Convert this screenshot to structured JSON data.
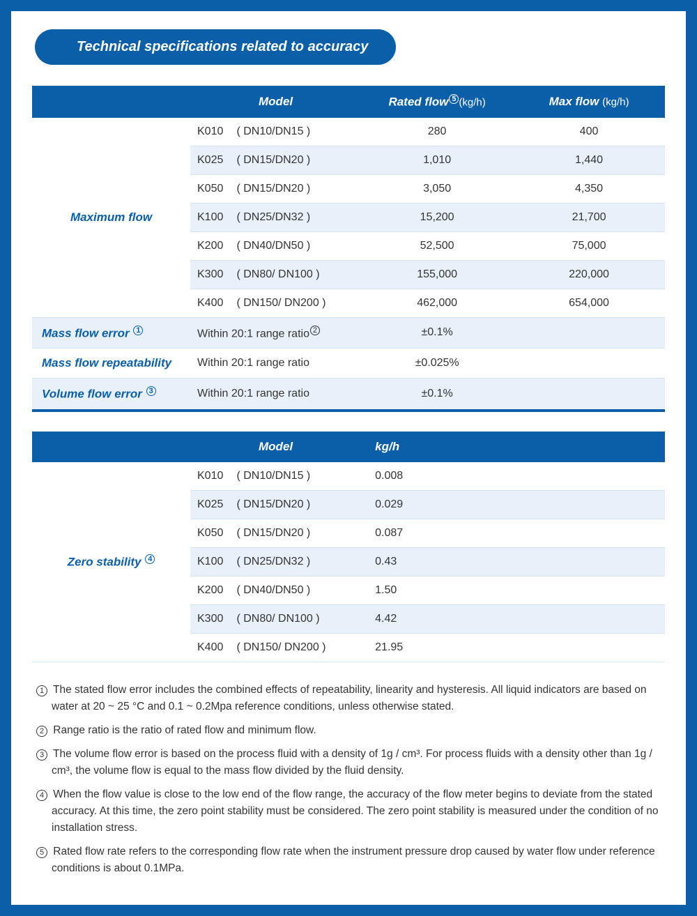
{
  "colors": {
    "primary": "#0a5fa8",
    "row_alt": "#e8f1fa",
    "text": "#333333",
    "page_bg": "#ffffff",
    "outer_bg": "#0a5fa8"
  },
  "title": "Technical specifications related to accuracy",
  "table1": {
    "headers": {
      "blank": "",
      "model": "Model",
      "rated": "Rated flow",
      "rated_sup": "5",
      "rated_unit": "(kg/h)",
      "max": "Max flow",
      "max_unit": "(kg/h)"
    },
    "maxflow_label": "Maximum flow",
    "rows": [
      {
        "model_code": "K010",
        "model_dn": "( DN10/DN15 )",
        "rated": "280",
        "max": "400"
      },
      {
        "model_code": "K025",
        "model_dn": "( DN15/DN20 )",
        "rated": "1,010",
        "max": "1,440"
      },
      {
        "model_code": "K050",
        "model_dn": "( DN15/DN20 )",
        "rated": "3,050",
        "max": "4,350"
      },
      {
        "model_code": "K100",
        "model_dn": "( DN25/DN32 )",
        "rated": "15,200",
        "max": "21,700"
      },
      {
        "model_code": "K200",
        "model_dn": "( DN40/DN50 )",
        "rated": "52,500",
        "max": "75,000"
      },
      {
        "model_code": "K300",
        "model_dn": "( DN80/ DN100 )",
        "rated": "155,000",
        "max": "220,000"
      },
      {
        "model_code": "K400",
        "model_dn": "( DN150/ DN200 )",
        "rated": "462,000",
        "max": "654,000"
      }
    ],
    "spec_rows": [
      {
        "label": "Mass flow error",
        "sup": "1",
        "cond": "Within 20:1 range ratio",
        "cond_sup": "2",
        "val": "±0.1%"
      },
      {
        "label": "Mass flow repeatability",
        "sup": "",
        "cond": "Within 20:1 range ratio",
        "cond_sup": "",
        "val": "±0.025%"
      },
      {
        "label": "Volume flow error",
        "sup": "3",
        "cond": "Within 20:1 range ratio",
        "cond_sup": "",
        "val": "±0.1%"
      }
    ]
  },
  "table2": {
    "headers": {
      "blank": "",
      "model": "Model",
      "val": "kg/h"
    },
    "label": "Zero stability",
    "label_sup": "4",
    "rows": [
      {
        "model_code": "K010",
        "model_dn": "( DN10/DN15 )",
        "val": "0.008"
      },
      {
        "model_code": "K025",
        "model_dn": "( DN15/DN20 )",
        "val": "0.029"
      },
      {
        "model_code": "K050",
        "model_dn": "( DN15/DN20 )",
        "val": "0.087"
      },
      {
        "model_code": "K100",
        "model_dn": "( DN25/DN32 )",
        "val": "0.43"
      },
      {
        "model_code": "K200",
        "model_dn": "( DN40/DN50 )",
        "val": "1.50"
      },
      {
        "model_code": "K300",
        "model_dn": "( DN80/ DN100 )",
        "val": "4.42"
      },
      {
        "model_code": "K400",
        "model_dn": "( DN150/ DN200 )",
        "val": "21.95"
      }
    ]
  },
  "footnotes": [
    {
      "n": "1",
      "text": "The stated flow error includes the combined effects of repeatability, linearity and hysteresis. All liquid indicators are based on water at 20 ~ 25 °C and 0.1 ~ 0.2Mpa reference conditions, unless otherwise stated."
    },
    {
      "n": "2",
      "text": "Range ratio is the ratio of rated flow and minimum flow."
    },
    {
      "n": "3",
      "text": "The volume flow error is based on the process fluid with a density of 1g / cm³. For process fluids with a density other than 1g / cm³, the volume flow is equal to the mass flow divided by the fluid density."
    },
    {
      "n": "4",
      "text": "When the flow value is close to the low end of the flow range, the accuracy of the flow meter begins to deviate from the stated accuracy. At this time, the zero point stability must be considered. The zero point stability is measured under the condition of no installation stress."
    },
    {
      "n": "5",
      "text": "Rated flow rate refers to the corresponding flow rate when the instrument pressure drop caused by water flow under reference conditions is about 0.1MPa."
    }
  ]
}
